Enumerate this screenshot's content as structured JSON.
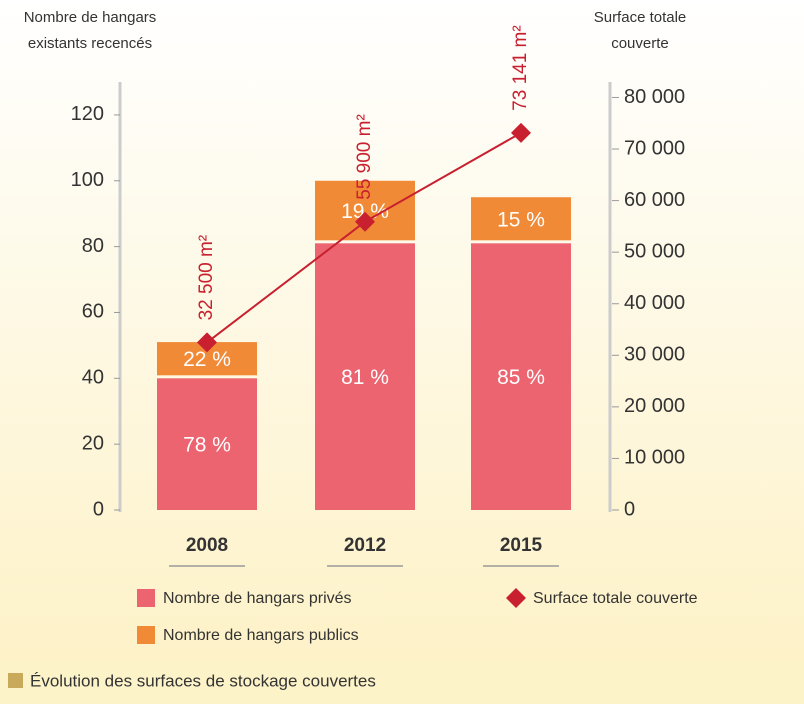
{
  "chart_data": {
    "type": "bar",
    "ylabel": [
      "Nombre de hangars",
      "existants recencés"
    ],
    "y2label": [
      "Surface totale",
      "couverte"
    ],
    "categories": [
      "2008",
      "2012",
      "2015"
    ],
    "series": [
      {
        "name": "Nombre de hangars privés",
        "type": "bar",
        "color": "#ec6470",
        "values": [
          40,
          81,
          81
        ],
        "percent_labels": [
          "78 %",
          "81 %",
          "85 %"
        ]
      },
      {
        "name": "Nombre de hangars publics",
        "type": "bar",
        "color": "#f08a36",
        "values": [
          11,
          19,
          14
        ],
        "percent_labels": [
          "22 %",
          "19 %",
          "15 %"
        ]
      },
      {
        "name": "Surface totale couverte",
        "type": "line",
        "axis": "y2",
        "color": "#c8202f",
        "values": [
          32500,
          55900,
          73141
        ],
        "value_labels": [
          "32 500 m²",
          "55 900 m²",
          "73 141 m²"
        ]
      }
    ],
    "stacked": true,
    "ylim": [
      0,
      130
    ],
    "yticks": [
      0,
      20,
      40,
      60,
      80,
      100,
      120
    ],
    "y2lim": [
      0,
      83000
    ],
    "y2ticks": [
      0,
      {
        "value": 10000,
        "label": "10 000"
      },
      {
        "value": 20000,
        "label": "20 000"
      },
      {
        "value": 30000,
        "label": "30 000"
      },
      {
        "value": 40000,
        "label": "40 000"
      },
      {
        "value": 50000,
        "label": "50 000"
      },
      {
        "value": 60000,
        "label": "60 000"
      },
      {
        "value": 70000,
        "label": "70 000"
      },
      {
        "value": 80000,
        "label": "80 000"
      }
    ],
    "caption": "Évolution des surfaces de stockage couvertes"
  }
}
